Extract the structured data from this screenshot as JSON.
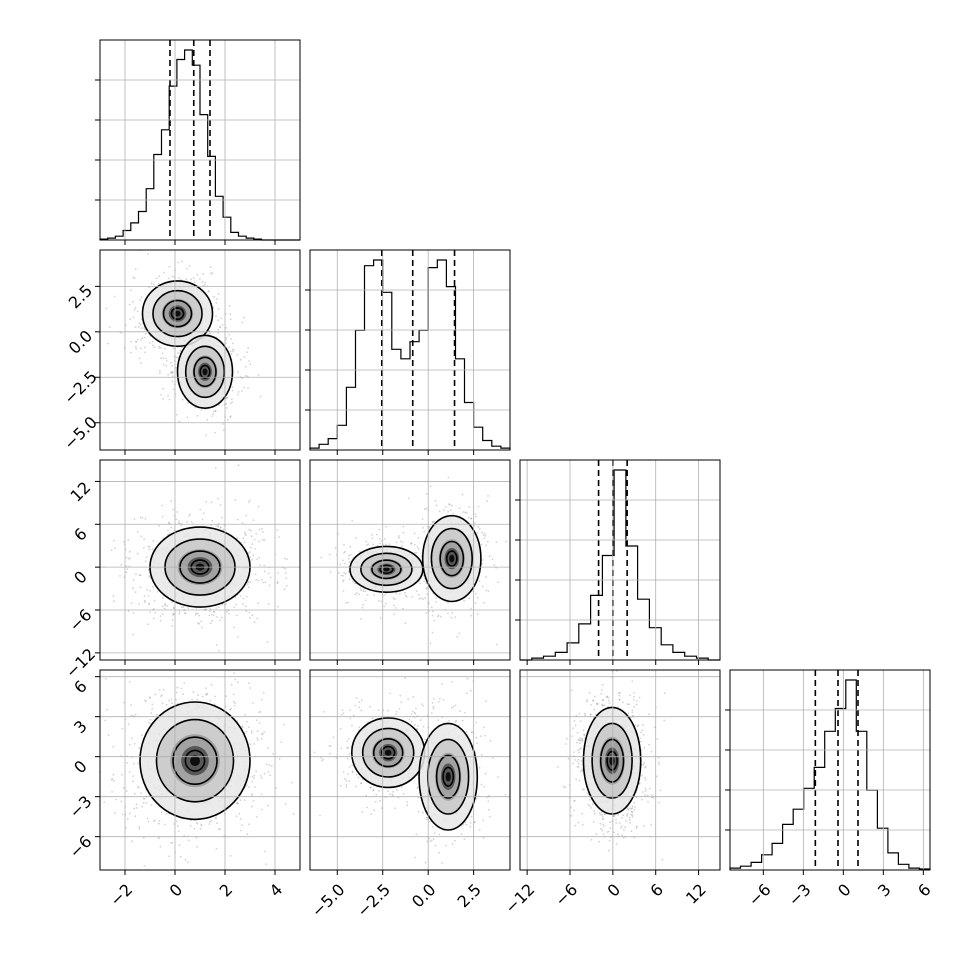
{
  "chart_data": {
    "type": "corner",
    "parameters": [
      {
        "range": [
          -3,
          5
        ],
        "ticks": [
          -2,
          0,
          2,
          4
        ],
        "tick_labels": [
          "−2",
          "0",
          "2",
          "4"
        ],
        "quantiles": [
          -0.2,
          0.75,
          1.4
        ],
        "hist": [
          0.005,
          0.01,
          0.02,
          0.05,
          0.09,
          0.15,
          0.27,
          0.45,
          0.58,
          0.81,
          0.95,
          1.0,
          0.92,
          0.66,
          0.44,
          0.23,
          0.12,
          0.04,
          0.02,
          0.01,
          0.005,
          0,
          0,
          0,
          0,
          0
        ]
      },
      {
        "range": [
          -6.5,
          4.5
        ],
        "ticks": [
          -5,
          -2.5,
          0,
          2.5
        ],
        "tick_labels": [
          "−5.0",
          "−2.5",
          "0.0",
          "2.5"
        ],
        "quantiles": [
          -2.55,
          -0.85,
          1.45
        ],
        "hist": [
          0.01,
          0.03,
          0.06,
          0.13,
          0.33,
          0.63,
          0.97,
          1.0,
          0.83,
          0.53,
          0.48,
          0.57,
          0.63,
          0.96,
          1.0,
          0.86,
          0.48,
          0.25,
          0.12,
          0.05,
          0.02,
          0.01
        ]
      },
      {
        "range": [
          -13,
          15
        ],
        "ticks": [
          -12,
          -6,
          0,
          6,
          12
        ],
        "tick_labels": [
          "−12",
          "−6",
          "0",
          "6",
          "12"
        ],
        "quantiles": [
          -2,
          0,
          2
        ],
        "hist": [
          0,
          0.01,
          0.02,
          0.04,
          0.09,
          0.19,
          0.34,
          0.55,
          1.0,
          0.6,
          0.32,
          0.17,
          0.08,
          0.04,
          0.02,
          0.01,
          0
        ]
      },
      {
        "range": [
          -8.5,
          6.5
        ],
        "ticks": [
          -6,
          -3,
          0,
          3,
          6
        ],
        "tick_labels": [
          "−6",
          "−3",
          "0",
          "3",
          "6"
        ],
        "quantiles": [
          -2.1,
          -0.4,
          1.1
        ],
        "hist": [
          0.01,
          0.02,
          0.04,
          0.08,
          0.14,
          0.24,
          0.32,
          0.43,
          0.54,
          0.73,
          0.85,
          1.0,
          0.73,
          0.42,
          0.22,
          0.09,
          0.03,
          0.01,
          0.005
        ]
      }
    ],
    "y_tick_labels": {
      "1": [
        "−5.0",
        "−2.5",
        "0.0",
        "2.5"
      ],
      "2": [
        "−12",
        "−6",
        "0",
        "6",
        "12"
      ],
      "3": [
        "−6",
        "−3",
        "0",
        "3",
        "6"
      ]
    },
    "grid": true,
    "contour_levels": 4,
    "scatter_color": "#808080"
  }
}
